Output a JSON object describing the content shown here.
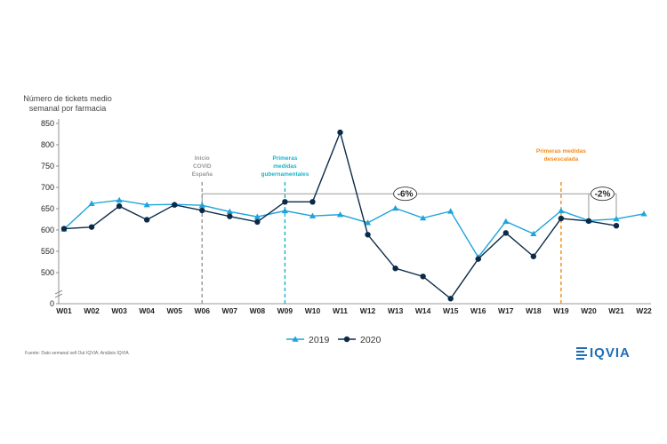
{
  "chart_data": {
    "type": "line",
    "ylabel_lines": [
      "Número de tickets medio",
      "semanal por farmacia"
    ],
    "yticks": [
      0,
      500,
      550,
      600,
      650,
      700,
      750,
      800,
      850
    ],
    "categories": [
      "W01",
      "W02",
      "W03",
      "W04",
      "W05",
      "W06",
      "W07",
      "W08",
      "W09",
      "W10",
      "W11",
      "W12",
      "W13",
      "W14",
      "W15",
      "W16",
      "W17",
      "W18",
      "W19",
      "W20",
      "W21",
      "W22"
    ],
    "series": [
      {
        "name": "2019",
        "color": "#1fa3dc",
        "marker": "triangle",
        "values": [
          602,
          662,
          670,
          659,
          660,
          658,
          643,
          631,
          645,
          633,
          636,
          617,
          651,
          628,
          644,
          536,
          620,
          591,
          645,
          622,
          626,
          638
        ]
      },
      {
        "name": "2020",
        "color": "#0b2a48",
        "marker": "circle",
        "values": [
          603,
          607,
          656,
          624,
          659,
          646,
          632,
          619,
          666,
          666,
          829,
          589,
          510,
          491,
          439,
          532,
          593,
          538,
          627,
          621,
          610,
          null
        ]
      }
    ],
    "annotations": [
      {
        "id": "covid",
        "lines": [
          "Inicio",
          "COVID",
          "España"
        ],
        "category": "W06",
        "color": "#999999"
      },
      {
        "id": "gov",
        "lines": [
          "Primeras",
          "medidas",
          "gubernamentales"
        ],
        "category": "W09",
        "color": "#16b5c9"
      },
      {
        "id": "desescalada",
        "lines": [
          "Primeras medidas",
          "desescalada"
        ],
        "category": "W19",
        "color": "#f28c1c"
      }
    ],
    "brackets": [
      {
        "label": "-6%",
        "from": "W06",
        "to": "W20",
        "level": 685
      },
      {
        "label": "-2%",
        "from": "W20",
        "to": "W21",
        "level": 685
      }
    ],
    "legend_position": "bottom"
  },
  "footer": {
    "source": "Fuente: Dato semanal sell Out IQVIA; Análisis IQVIA",
    "logo_text": "IQVIA"
  }
}
